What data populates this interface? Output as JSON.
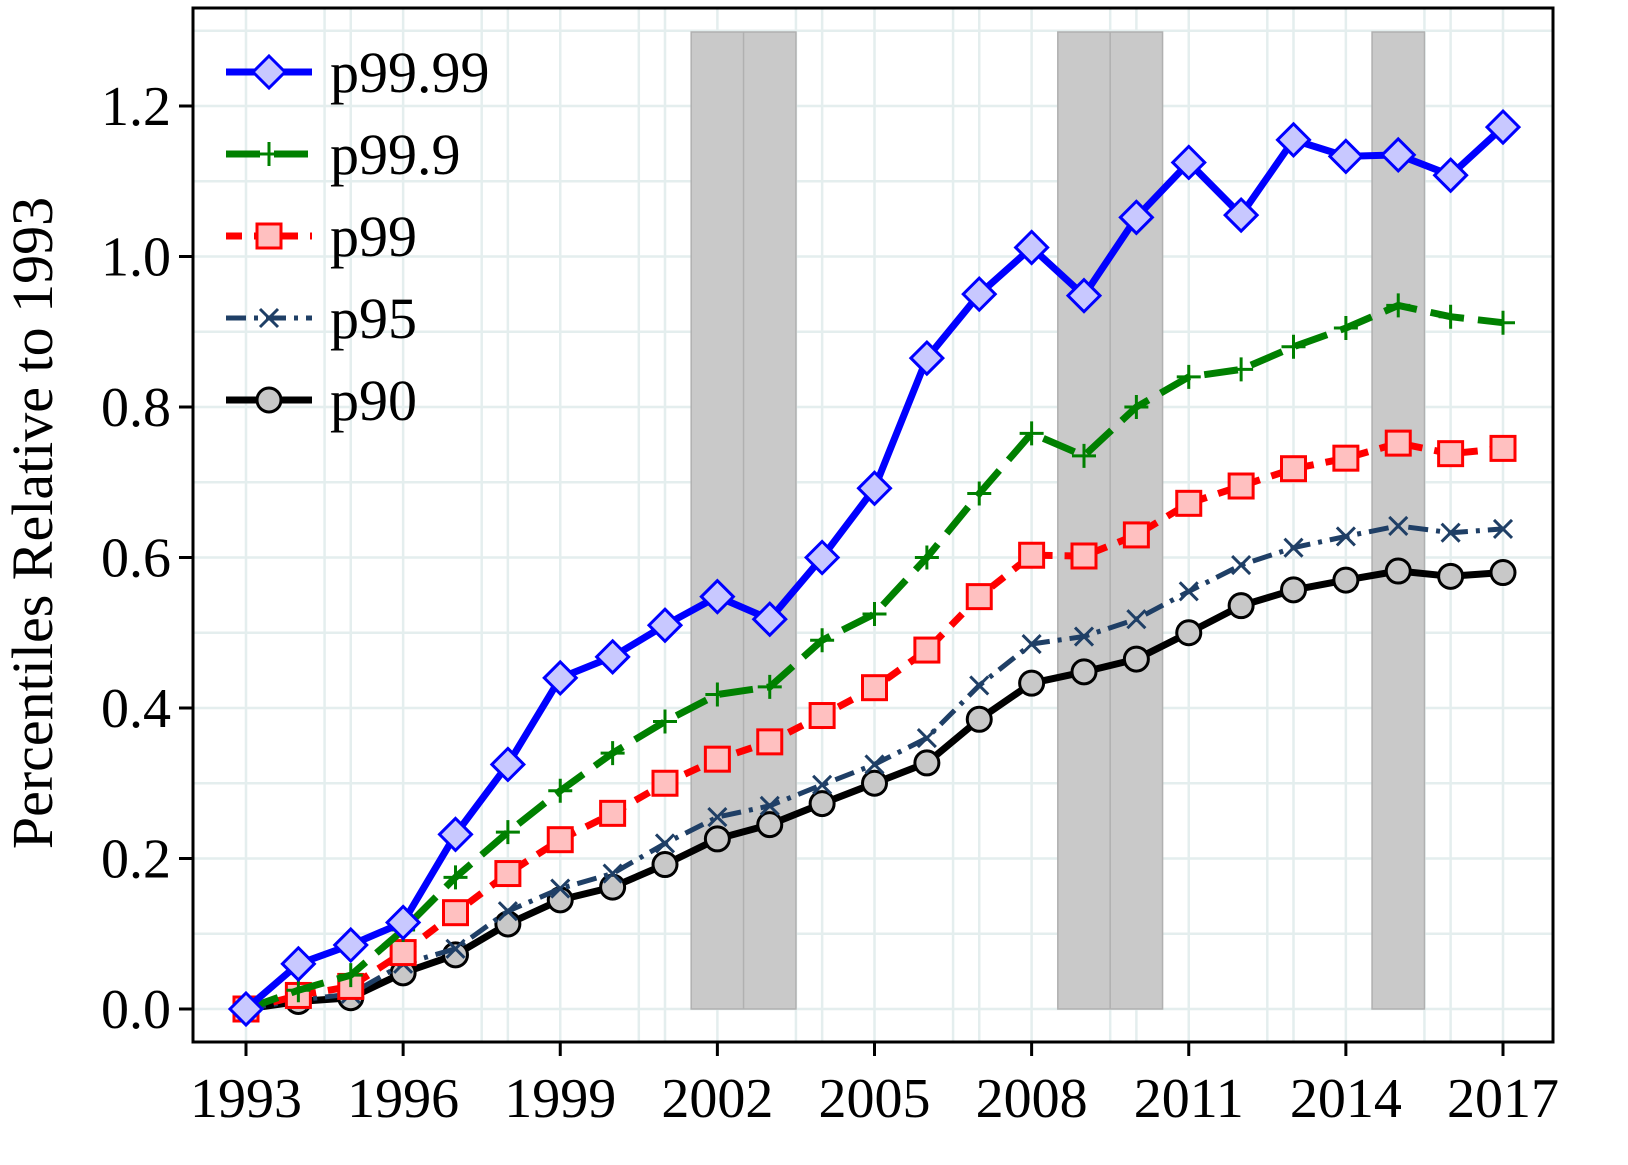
{
  "chart_data": {
    "type": "line",
    "title": "",
    "xlabel": "",
    "ylabel": "Percentiles Relative to 1993",
    "xlim": [
      1993,
      2017
    ],
    "ylim": [
      0.0,
      1.3
    ],
    "x": [
      1993,
      1994,
      1995,
      1996,
      1997,
      1998,
      1999,
      2000,
      2001,
      2002,
      2003,
      2004,
      2005,
      2006,
      2007,
      2008,
      2009,
      2010,
      2011,
      2012,
      2013,
      2014,
      2015,
      2016,
      2017
    ],
    "x_ticks": [
      1993,
      1996,
      1999,
      2002,
      2005,
      2008,
      2011,
      2014,
      2017
    ],
    "x_tick_labels": [
      "1993",
      "1996",
      "1999",
      "2002",
      "2005",
      "2008",
      "2011",
      "2014",
      "2017"
    ],
    "y_ticks": [
      0.0,
      0.2,
      0.4,
      0.6,
      0.8,
      1.0,
      1.2
    ],
    "y_tick_labels": [
      "0.0",
      "0.2",
      "0.4",
      "0.6",
      "0.8",
      "1.0",
      "1.2"
    ],
    "grid": true,
    "legend_position": "top-left",
    "recession_bands": [
      {
        "start": 2001.5,
        "end": 2003.5
      },
      {
        "start": 2008.5,
        "end": 2010.5
      },
      {
        "start": 2014.5,
        "end": 2015.5
      }
    ],
    "recession_band_dividers": [
      2002.5,
      2009.5
    ],
    "series": [
      {
        "name": "p99.99",
        "color": "#0000ff",
        "fill": "#c8c8ff",
        "marker": "diamond",
        "dash": "solid",
        "values": [
          0.0,
          0.06,
          0.085,
          0.115,
          0.232,
          0.325,
          0.44,
          0.468,
          0.51,
          0.548,
          0.518,
          0.6,
          0.692,
          0.865,
          0.95,
          1.012,
          0.948,
          1.052,
          1.125,
          1.055,
          1.155,
          1.133,
          1.135,
          1.108,
          1.172
        ]
      },
      {
        "name": "p99.9",
        "color": "#008000",
        "fill": "none",
        "marker": "plus",
        "dash": "longdash",
        "values": [
          0.0,
          0.025,
          0.045,
          0.105,
          0.175,
          0.235,
          0.29,
          0.34,
          0.382,
          0.418,
          0.428,
          0.49,
          0.525,
          0.6,
          0.685,
          0.765,
          0.735,
          0.8,
          0.84,
          0.85,
          0.88,
          0.905,
          0.935,
          0.92,
          0.912
        ]
      },
      {
        "name": "p99",
        "color": "#ff0000",
        "fill": "#ffc0c0",
        "marker": "square",
        "dash": "shortdash",
        "values": [
          0.0,
          0.018,
          0.03,
          0.075,
          0.128,
          0.18,
          0.225,
          0.26,
          0.3,
          0.332,
          0.355,
          0.39,
          0.427,
          0.477,
          0.548,
          0.603,
          0.602,
          0.63,
          0.672,
          0.695,
          0.718,
          0.732,
          0.752,
          0.738,
          0.745
        ]
      },
      {
        "name": "p95",
        "color": "#1f3f66",
        "fill": "none",
        "marker": "x",
        "dash": "dashdot",
        "values": [
          0.0,
          0.012,
          0.02,
          0.06,
          0.08,
          0.13,
          0.16,
          0.18,
          0.22,
          0.255,
          0.27,
          0.298,
          0.325,
          0.36,
          0.43,
          0.485,
          0.495,
          0.518,
          0.555,
          0.59,
          0.613,
          0.628,
          0.642,
          0.633,
          0.638
        ]
      },
      {
        "name": "p90",
        "color": "#000000",
        "fill": "#c8c8c8",
        "marker": "circle",
        "dash": "solid",
        "values": [
          0.0,
          0.01,
          0.015,
          0.048,
          0.072,
          0.113,
          0.145,
          0.162,
          0.192,
          0.226,
          0.245,
          0.273,
          0.3,
          0.327,
          0.385,
          0.433,
          0.448,
          0.465,
          0.5,
          0.536,
          0.557,
          0.57,
          0.582,
          0.575,
          0.58
        ]
      }
    ]
  }
}
